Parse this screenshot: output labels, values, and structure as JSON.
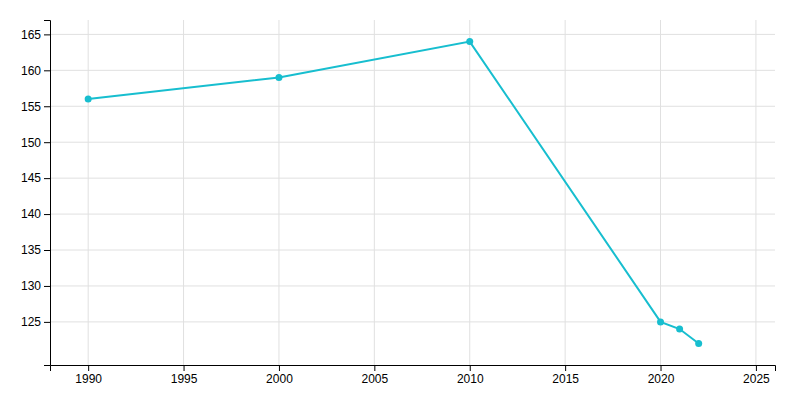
{
  "chart_data": {
    "type": "line",
    "x": [
      1990,
      2000,
      2010,
      2020,
      2021,
      2022
    ],
    "values": [
      156,
      159,
      164,
      125,
      124,
      122
    ],
    "color": "#17becf",
    "marker": "circle",
    "xlim": [
      1988,
      2026
    ],
    "ylim": [
      119,
      167
    ],
    "xticks": [
      1990,
      1995,
      2000,
      2005,
      2010,
      2015,
      2020,
      2025
    ],
    "yticks": [
      125,
      130,
      135,
      140,
      145,
      150,
      155,
      160,
      165
    ],
    "grid": true
  }
}
